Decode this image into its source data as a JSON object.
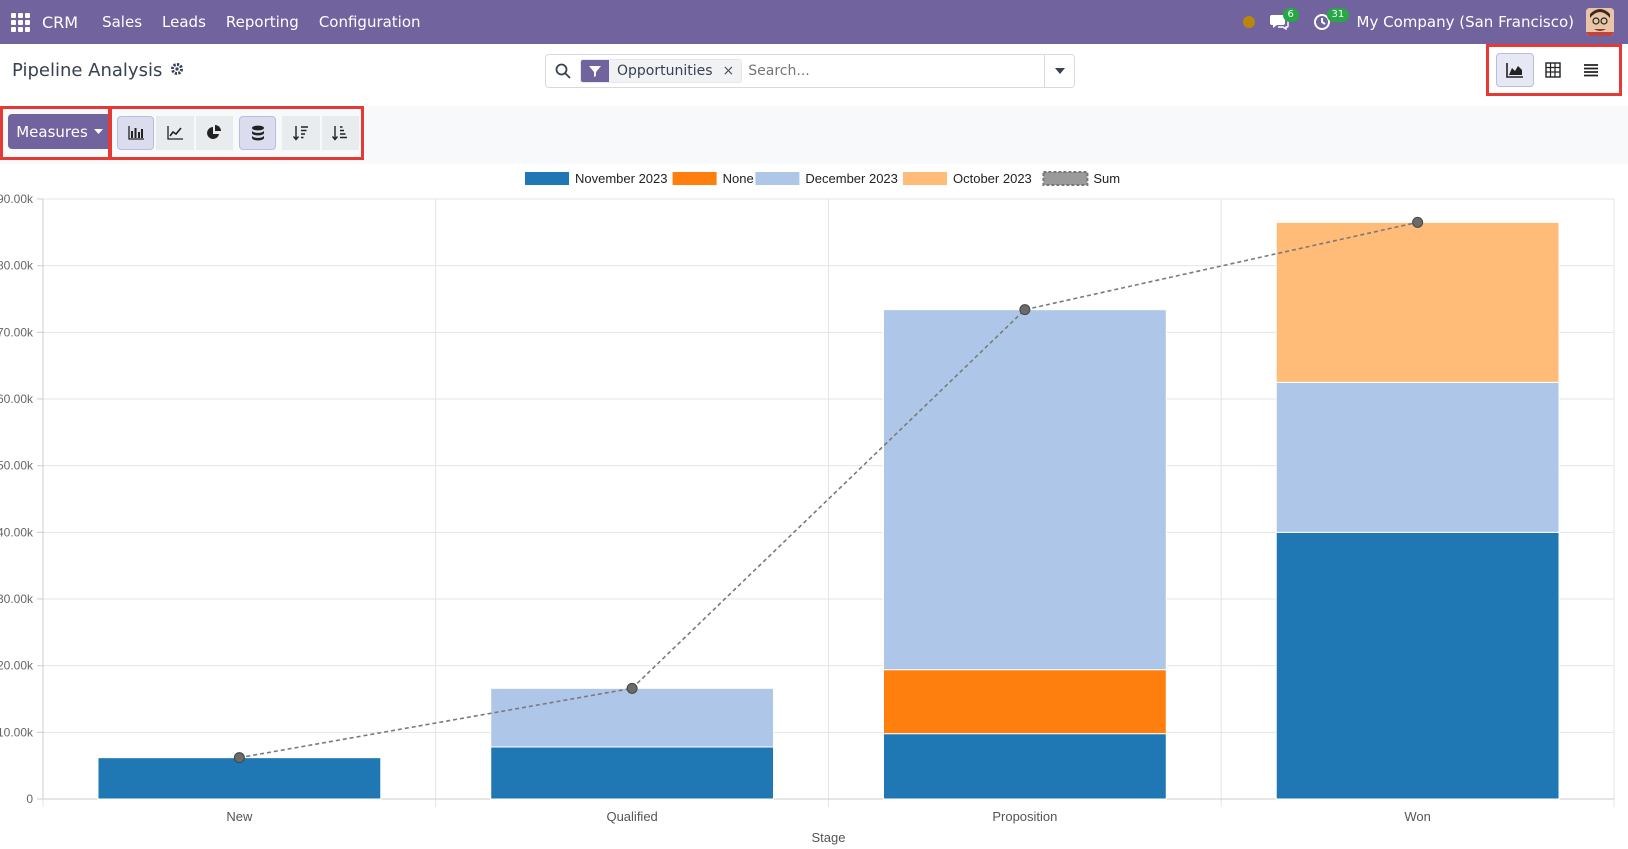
{
  "navbar": {
    "brand": "CRM",
    "menu": [
      "Sales",
      "Leads",
      "Reporting",
      "Configuration"
    ],
    "messages_badge": "6",
    "activities_badge": "31",
    "company": "My Company (San Francisco)"
  },
  "control_panel": {
    "title": "Pipeline Analysis",
    "search": {
      "facet_label": "Opportunities",
      "facet_remove": "×",
      "placeholder": "Search..."
    }
  },
  "toolbar": {
    "measures_label": "Measures"
  },
  "colors": {
    "brand": "#71639e",
    "november": "#1f77b4",
    "none": "#ff7f0e",
    "december": "#aec7e8",
    "october": "#ffbb78",
    "sum": "#7a7a7a",
    "highlight": "#e53935"
  },
  "chart_data": {
    "type": "bar",
    "stacked": true,
    "categories": [
      "New",
      "Qualified",
      "Proposition",
      "Won"
    ],
    "xlabel": "Stage",
    "ylabel": "",
    "ylim": [
      0,
      90000
    ],
    "yticks": [
      {
        "value": 0,
        "label": "0"
      },
      {
        "value": 10000,
        "label": "10.00k"
      },
      {
        "value": 20000,
        "label": "20.00k"
      },
      {
        "value": 30000,
        "label": "30.00k"
      },
      {
        "value": 40000,
        "label": "40.00k"
      },
      {
        "value": 50000,
        "label": "50.00k"
      },
      {
        "value": 60000,
        "label": "60.00k"
      },
      {
        "value": 70000,
        "label": "70.00k"
      },
      {
        "value": 80000,
        "label": "80.00k"
      },
      {
        "value": 90000,
        "label": "90.00k"
      }
    ],
    "grid": true,
    "legend_position": "top",
    "series": [
      {
        "name": "November 2023",
        "color": "#1f77b4",
        "values": [
          6200,
          7800,
          9800,
          40000
        ]
      },
      {
        "name": "None",
        "color": "#ff7f0e",
        "values": [
          0,
          0,
          9600,
          0
        ]
      },
      {
        "name": "December 2023",
        "color": "#aec7e8",
        "values": [
          0,
          8800,
          54000,
          22500
        ]
      },
      {
        "name": "October 2023",
        "color": "#ffbb78",
        "values": [
          0,
          0,
          0,
          24000
        ]
      }
    ],
    "sum": {
      "name": "Sum",
      "values": [
        6200,
        16600,
        73400,
        86500
      ]
    }
  }
}
